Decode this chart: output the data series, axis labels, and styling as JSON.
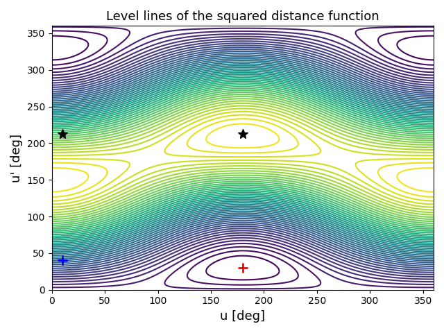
{
  "title": "Level lines of the squared distance function",
  "xlabel": "u [deg]",
  "ylabel": "u' [deg]",
  "xlim": [
    0,
    360
  ],
  "ylim": [
    0,
    360
  ],
  "xticks": [
    0,
    50,
    100,
    150,
    200,
    250,
    300,
    350
  ],
  "yticks": [
    0,
    50,
    100,
    150,
    200,
    250,
    300,
    350
  ],
  "red_cross": [
    180,
    30
  ],
  "blue_cross": [
    10,
    40
  ],
  "star1": [
    10,
    213
  ],
  "star2": [
    180,
    213
  ],
  "u0": 180,
  "v0": 30,
  "n_levels": 50,
  "cmap": "viridis",
  "figsize": [
    6.4,
    4.8
  ],
  "dpi": 100
}
